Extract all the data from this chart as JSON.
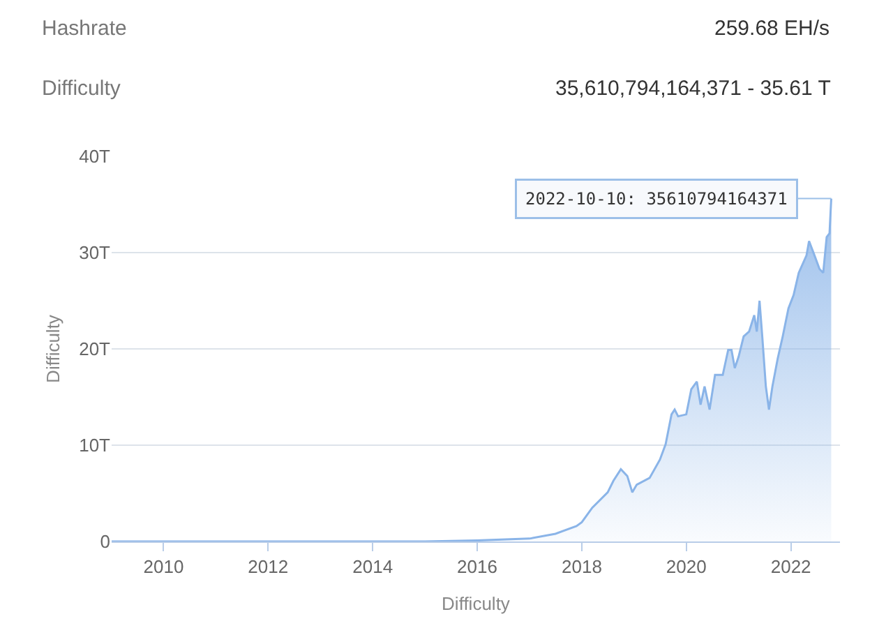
{
  "chart_data": {
    "type": "area",
    "annotations": [
      "Hashrate",
      "259.68 EH/s",
      "Difficulty",
      "35,610,794,164,371 - 35.61 T",
      {
        "text": "2022-10-10: 35610794164371",
        "x": "2022-10-10",
        "y": 35.61
      }
    ],
    "xlabel": "Difficulty",
    "ylabel": "Difficulty",
    "x": [
      "2009-01-03",
      "2012-01-01",
      "2014-01-01",
      "2015-01-01",
      "2016-01-01",
      "2017-01-01",
      "2017-07-01",
      "2017-11-25",
      "2018-01-01",
      "2018-03-15",
      "2018-07-01",
      "2018-08-10",
      "2018-10-01",
      "2018-11-15",
      "2018-12-20",
      "2019-01-20",
      "2019-04-20",
      "2019-07-01",
      "2019-08-10",
      "2019-09-20",
      "2019-10-12",
      "2019-11-05",
      "2020-01-01",
      "2020-02-05",
      "2020-03-15",
      "2020-04-10",
      "2020-05-08",
      "2020-06-12",
      "2020-07-20",
      "2020-09-12",
      "2020-10-20",
      "2020-11-12",
      "2020-12-05",
      "2021-01-01",
      "2021-02-05",
      "2021-03-15",
      "2021-04-20",
      "2021-05-08",
      "2021-05-27",
      "2021-06-15",
      "2021-07-10",
      "2021-08-01",
      "2021-08-25",
      "2021-10-01",
      "2021-11-05",
      "2021-12-15",
      "2022-01-20",
      "2022-02-25",
      "2022-04-20",
      "2022-05-08",
      "2022-06-15",
      "2022-07-20",
      "2022-08-15",
      "2022-09-08",
      "2022-09-28",
      "2022-10-10"
    ],
    "series": [
      {
        "color": "#8ab4e8",
        "values": [
          0,
          0,
          0,
          0,
          0.1,
          0.3,
          0.8,
          1.6,
          2.0,
          3.5,
          5.1,
          6.3,
          7.5,
          6.8,
          5.1,
          5.9,
          6.6,
          8.5,
          10.1,
          13.2,
          13.7,
          13.0,
          13.2,
          15.8,
          16.6,
          14.2,
          16.1,
          13.7,
          17.3,
          17.3,
          19.9,
          19.9,
          18.0,
          19.2,
          21.3,
          21.8,
          23.5,
          21.8,
          25.0,
          21.3,
          16.1,
          13.7,
          16.1,
          19.0,
          21.3,
          24.2,
          25.6,
          27.9,
          29.7,
          31.2,
          29.7,
          28.3,
          27.9,
          31.6,
          32.0,
          35.61
        ]
      }
    ],
    "xlim": [
      "2009-01-03",
      "2022-12-10"
    ],
    "xticks": [
      "2010",
      "2012",
      "2014",
      "2016",
      "2018",
      "2020",
      "2022"
    ],
    "ylim": [
      0,
      40
    ],
    "yticks": [
      0,
      {
        "value": 10,
        "label": "10T"
      },
      {
        "value": 20,
        "label": "20T"
      },
      {
        "value": 30,
        "label": "30T"
      },
      {
        "value": 40,
        "label": "40T"
      }
    ],
    "grid": "y",
    "legend": false,
    "marker": "none",
    "line_style": "solid"
  }
}
